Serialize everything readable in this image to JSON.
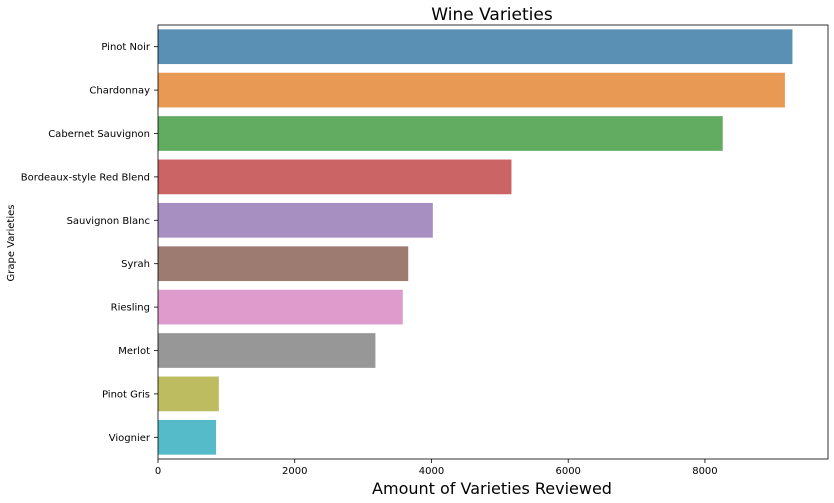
{
  "chart_data": {
    "type": "bar",
    "orientation": "horizontal",
    "title": "Wine Varieties",
    "xlabel": "Amount of Varieties Reviewed",
    "ylabel": "Grape Varieties",
    "categories": [
      "Pinot Noir",
      "Chardonnay",
      "Cabernet Sauvignon",
      "Bordeaux-style Red Blend",
      "Sauvignon Blanc",
      "Syrah",
      "Riesling",
      "Merlot",
      "Pinot Gris",
      "Viognier"
    ],
    "values": [
      9280,
      9170,
      8260,
      5170,
      4020,
      3660,
      3580,
      3180,
      890,
      850
    ],
    "colors": [
      "#5b90b5",
      "#e89a55",
      "#62ac62",
      "#cb6464",
      "#a88fc2",
      "#9e7b70",
      "#df9bcb",
      "#979797",
      "#bdbc60",
      "#56bbc8"
    ],
    "xlim": [
      0,
      9800
    ],
    "xticks": [
      0,
      2000,
      4000,
      6000,
      8000
    ],
    "xtick_labels": [
      "0",
      "2000",
      "4000",
      "6000",
      "8000"
    ],
    "grid": false,
    "legend": "none"
  }
}
